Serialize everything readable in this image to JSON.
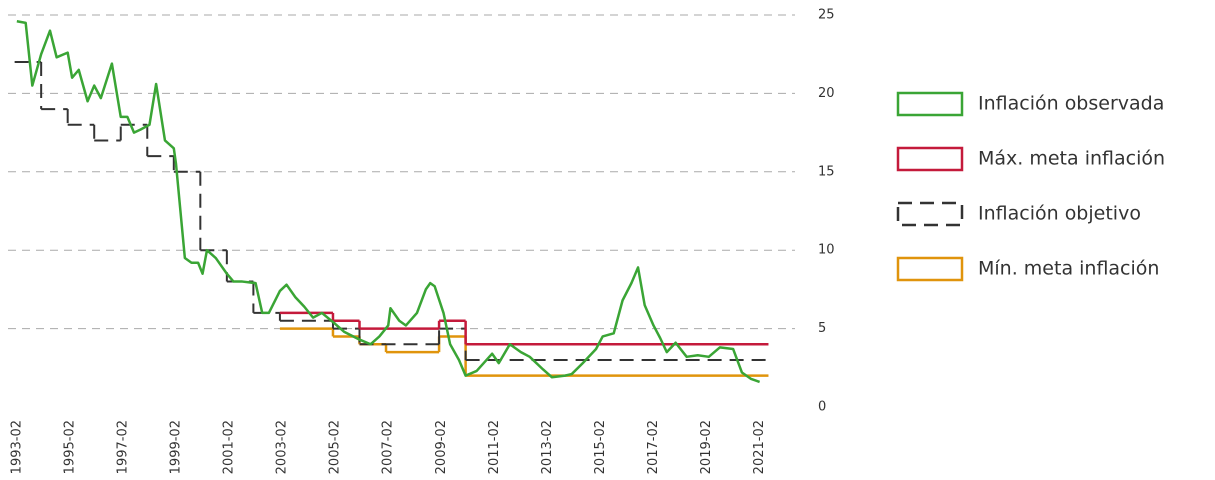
{
  "chart_data": {
    "type": "line",
    "xlim": [
      "1992-10",
      "2022-06"
    ],
    "xticks": [
      "1993-02",
      "1995-02",
      "1997-02",
      "1999-02",
      "2001-02",
      "2003-02",
      "2005-02",
      "2007-02",
      "2009-02",
      "2011-02",
      "2013-02",
      "2015-02",
      "2017-02",
      "2019-02",
      "2021-02"
    ],
    "ylim": [
      0,
      25
    ],
    "yticks": [
      0,
      5,
      10,
      15,
      20,
      25
    ],
    "grid": true,
    "legend": "right",
    "series": [
      {
        "name": "Inflación observada",
        "color": "#3aa535",
        "dashed": false,
        "step": false,
        "x": [
          "1993-02",
          "1993-06",
          "1993-09",
          "1994-01",
          "1994-05",
          "1994-08",
          "1995-01",
          "1995-03",
          "1995-06",
          "1995-10",
          "1996-01",
          "1996-04",
          "1996-09",
          "1997-01",
          "1997-04",
          "1997-07",
          "1997-10",
          "1998-02",
          "1998-05",
          "1998-09",
          "1999-01",
          "1999-02",
          "1999-06",
          "1999-09",
          "1999-12",
          "2000-02",
          "2000-04",
          "2000-08",
          "2001-01",
          "2001-04",
          "2001-08",
          "2002-02",
          "2002-05",
          "2002-08",
          "2003-01",
          "2003-04",
          "2003-08",
          "2003-12",
          "2004-04",
          "2004-08",
          "2005-02",
          "2005-06",
          "2006-01",
          "2006-06",
          "2006-10",
          "2007-02",
          "2007-03",
          "2007-07",
          "2007-10",
          "2008-03",
          "2008-07",
          "2008-09",
          "2008-11",
          "2009-03",
          "2009-06",
          "2009-10",
          "2010-01",
          "2010-06",
          "2011-01",
          "2011-04",
          "2011-09",
          "2012-02",
          "2012-06",
          "2012-12",
          "2013-04",
          "2013-10",
          "2014-01",
          "2014-06",
          "2014-12",
          "2015-03",
          "2015-08",
          "2015-12",
          "2016-04",
          "2016-07",
          "2016-10",
          "2017-02",
          "2017-05",
          "2017-08",
          "2017-12",
          "2018-05",
          "2018-10",
          "2019-03",
          "2019-08",
          "2020-02",
          "2020-06",
          "2020-10",
          "2021-02"
        ],
        "values": [
          24.6,
          24.5,
          20.5,
          22.5,
          24,
          22.3,
          22.6,
          21,
          21.5,
          19.5,
          20.5,
          19.7,
          21.9,
          18.5,
          18.5,
          17.5,
          17.7,
          18,
          20.6,
          17,
          16.5,
          15.5,
          9.5,
          9.2,
          9.2,
          8.5,
          10,
          9.5,
          8.5,
          8,
          8,
          7.9,
          6,
          6,
          7.4,
          7.8,
          7,
          6.4,
          5.7,
          6,
          5.3,
          4.8,
          4.3,
          4,
          4.5,
          5.2,
          6.3,
          5.5,
          5.2,
          6,
          7.5,
          7.9,
          7.7,
          6,
          4,
          3,
          2,
          2.3,
          3.4,
          2.8,
          4,
          3.5,
          3.2,
          2.4,
          1.9,
          2,
          2.1,
          2.8,
          3.7,
          4.5,
          4.7,
          6.8,
          7.9,
          8.9,
          6.5,
          5.2,
          4.4,
          3.5,
          4.1,
          3.2,
          3.3,
          3.2,
          3.8,
          3.7,
          2.2,
          1.8,
          1.6
        ]
      },
      {
        "name": "Máx. meta inflación",
        "color": "#c41a3b",
        "dashed": false,
        "step": true,
        "x": [
          "2003-01",
          "2005-01",
          "2006-01",
          "2009-01",
          "2010-01",
          "2021-06"
        ],
        "values": [
          6,
          5.5,
          5,
          5.5,
          4,
          4
        ]
      },
      {
        "name": "Inflación objetivo",
        "color": "#333333",
        "dashed": true,
        "step": true,
        "x": [
          "1993-01",
          "1994-01",
          "1995-01",
          "1996-01",
          "1997-01",
          "1998-01",
          "1999-01",
          "2000-01",
          "2001-01",
          "2002-01",
          "2003-01",
          "2005-01",
          "2006-01",
          "2009-01",
          "2010-01",
          "2021-06"
        ],
        "values": [
          22,
          19,
          18,
          17,
          18,
          16,
          15,
          10,
          8,
          6,
          5.5,
          5,
          4,
          5,
          3,
          3
        ]
      },
      {
        "name": "Mín. meta inflación",
        "color": "#e0940c",
        "dashed": false,
        "step": true,
        "x": [
          "2003-01",
          "2005-01",
          "2006-01",
          "2007-01",
          "2009-01",
          "2010-01",
          "2021-06"
        ],
        "values": [
          5,
          4.5,
          4,
          3.5,
          4.5,
          2,
          2
        ]
      }
    ]
  }
}
